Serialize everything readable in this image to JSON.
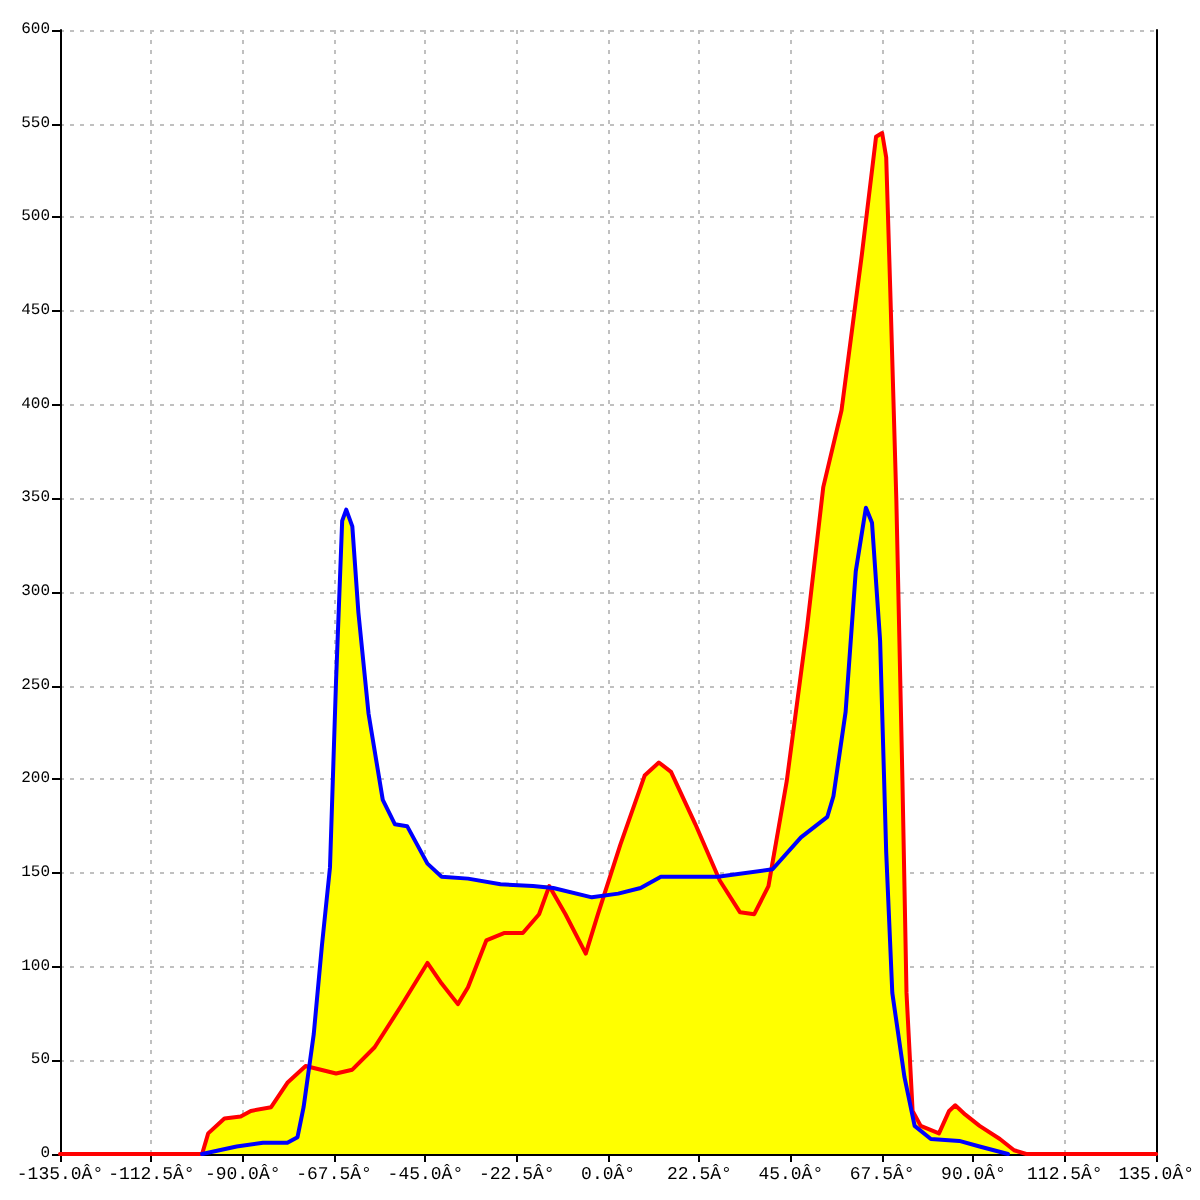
{
  "chart_data": {
    "type": "area",
    "xlim": [
      -135,
      135
    ],
    "xticks": [
      {
        "value": -135,
        "label": "-135.0Â°"
      },
      {
        "value": -112.5,
        "label": "-112.5Â°"
      },
      {
        "value": -90,
        "label": "-90.0Â°"
      },
      {
        "value": -67.5,
        "label": "-67.5Â°"
      },
      {
        "value": -45,
        "label": "-45.0Â°"
      },
      {
        "value": -22.5,
        "label": "-22.5Â°"
      },
      {
        "value": 0,
        "label": "0.0Â°"
      },
      {
        "value": 22.5,
        "label": "22.5Â°"
      },
      {
        "value": 45,
        "label": "45.0Â°"
      },
      {
        "value": 67.5,
        "label": "67.5Â°"
      },
      {
        "value": 90,
        "label": "90.0Â°"
      },
      {
        "value": 112.5,
        "label": "112.5Â°"
      },
      {
        "value": 135,
        "label": "135.0Â°"
      }
    ],
    "ylim": [
      0,
      600
    ],
    "yticks": [
      0,
      50,
      100,
      150,
      200,
      250,
      300,
      350,
      400,
      450,
      500,
      550,
      600
    ],
    "grid": true,
    "marker": "none",
    "line_style": "solid",
    "series": [
      {
        "color": "#ffff00",
        "x": [
          -100,
          -98.5,
          -94.5,
          -90.5,
          -88,
          -83,
          -79,
          -74.5,
          -73.5,
          -72.5,
          -70.5,
          -68.5,
          -67,
          -65.5,
          -64.5,
          -63,
          -61.5,
          -59,
          -55.5,
          -52.5,
          -49.5,
          -44.5,
          -41,
          -34.5,
          -26.5,
          -18.5,
          -14.5,
          -13.5,
          -4,
          -1,
          3,
          9,
          12.5,
          15.5,
          21.5,
          27,
          40,
          44,
          49,
          53,
          57.5,
          62.5,
          66,
          67.5,
          68.5,
          69.5,
          71,
          72.5,
          73.5,
          75,
          77,
          81.5,
          84,
          85.5,
          88,
          91.5,
          96.5,
          100,
          103
        ],
        "values": [
          0,
          11,
          19,
          20,
          23,
          25,
          38,
          47,
          46,
          64,
          111,
          153,
          253,
          338,
          344,
          335,
          289,
          235,
          189,
          176,
          175,
          155,
          148,
          147,
          144,
          143,
          143,
          142,
          137,
          138,
          165,
          202,
          209,
          204,
          176,
          148,
          152,
          199,
          281,
          356,
          397,
          480,
          543,
          545,
          532,
          461,
          349,
          199,
          86,
          23,
          15,
          11,
          23,
          26,
          21,
          15,
          8,
          2,
          0
        ]
      },
      {
        "type": "line",
        "color": "#ff0000",
        "x": [
          -135,
          -100,
          -98.5,
          -94.5,
          -90.5,
          -88,
          -83,
          -79,
          -74.5,
          -67,
          -63,
          -57.5,
          -51,
          -44.5,
          -41,
          -37,
          -34.5,
          -30,
          -25.5,
          -21,
          -17,
          -14.5,
          -10.5,
          -5.5,
          -2.5,
          3,
          9,
          12.5,
          15.5,
          21.5,
          27.5,
          32.5,
          36,
          39.5,
          44,
          49,
          53,
          57.5,
          62.5,
          66,
          67.5,
          68.5,
          69.5,
          71,
          72.5,
          73.5,
          75,
          77,
          81.5,
          84,
          85.5,
          88,
          91.5,
          96.5,
          100,
          103,
          135
        ],
        "values": [
          0,
          0,
          11,
          19,
          20,
          23,
          25,
          38,
          47,
          43,
          45,
          57,
          79,
          102,
          91,
          80,
          89,
          114,
          118,
          118,
          128,
          143,
          128,
          107,
          128,
          165,
          202,
          209,
          204,
          176,
          146,
          129,
          128,
          143,
          199,
          281,
          356,
          397,
          480,
          543,
          545,
          532,
          461,
          349,
          199,
          86,
          23,
          15,
          11,
          23,
          26,
          21,
          15,
          8,
          2,
          0,
          0
        ]
      },
      {
        "type": "line",
        "color": "#0000ff",
        "x": [
          -100,
          -91.5,
          -85,
          -79,
          -76.5,
          -75,
          -72.5,
          -70.5,
          -68.5,
          -67,
          -65.5,
          -64.5,
          -63,
          -61.5,
          -59,
          -55.5,
          -52.5,
          -49.5,
          -44.5,
          -41,
          -34.5,
          -26.5,
          -18.5,
          -13.5,
          -4,
          2.5,
          8,
          13,
          27,
          40.5,
          47.5,
          54,
          55.5,
          58.5,
          61,
          63.5,
          65,
          67,
          68.5,
          70,
          73,
          75.5,
          79.5,
          86.5,
          91.5,
          98.5
        ],
        "values": [
          0,
          4,
          6,
          6,
          9,
          25,
          64,
          111,
          153,
          253,
          338,
          344,
          335,
          289,
          235,
          189,
          176,
          175,
          155,
          148,
          147,
          144,
          143,
          142,
          137,
          139,
          142,
          148,
          148,
          152,
          169,
          180,
          191,
          236,
          311,
          345,
          337,
          274,
          161,
          86,
          41,
          15,
          8,
          7,
          4,
          0
        ]
      }
    ]
  }
}
